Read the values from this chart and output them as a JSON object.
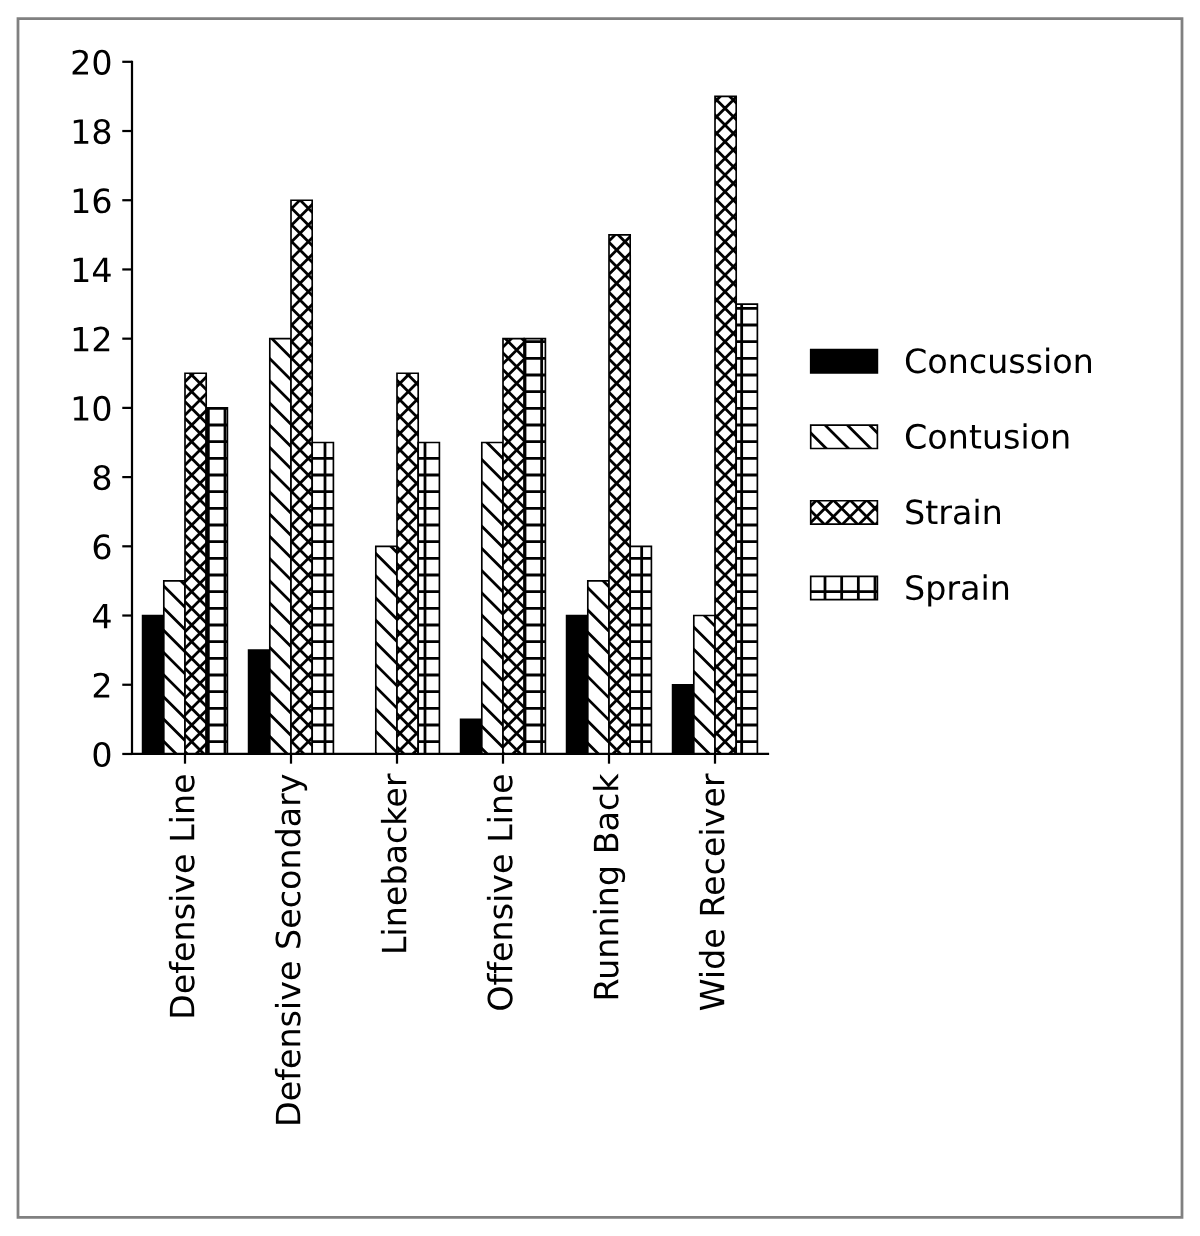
{
  "chart_data": {
    "type": "bar",
    "categories": [
      "Defensive Line",
      "Defensive Secondary",
      "Linebacker",
      "Offensive Line",
      "Running Back",
      "Wide Receiver"
    ],
    "series": [
      {
        "name": "Concussion",
        "color": "#000000",
        "values": [
          4,
          3,
          0,
          1,
          4,
          2
        ]
      },
      {
        "name": "Contusion",
        "color": "#000000",
        "values": [
          5,
          12,
          6,
          9,
          5,
          4
        ]
      },
      {
        "name": "Strain",
        "color": "#000000",
        "values": [
          11,
          16,
          11,
          12,
          15,
          19
        ]
      },
      {
        "name": "Sprain",
        "color": "#000000",
        "values": [
          10,
          9,
          9,
          12,
          6,
          13
        ]
      }
    ],
    "ylim": [
      0,
      20
    ],
    "yticks": [
      0,
      2,
      4,
      6,
      8,
      10,
      12,
      14,
      16,
      18,
      20
    ],
    "grid": false,
    "legend": "right"
  }
}
